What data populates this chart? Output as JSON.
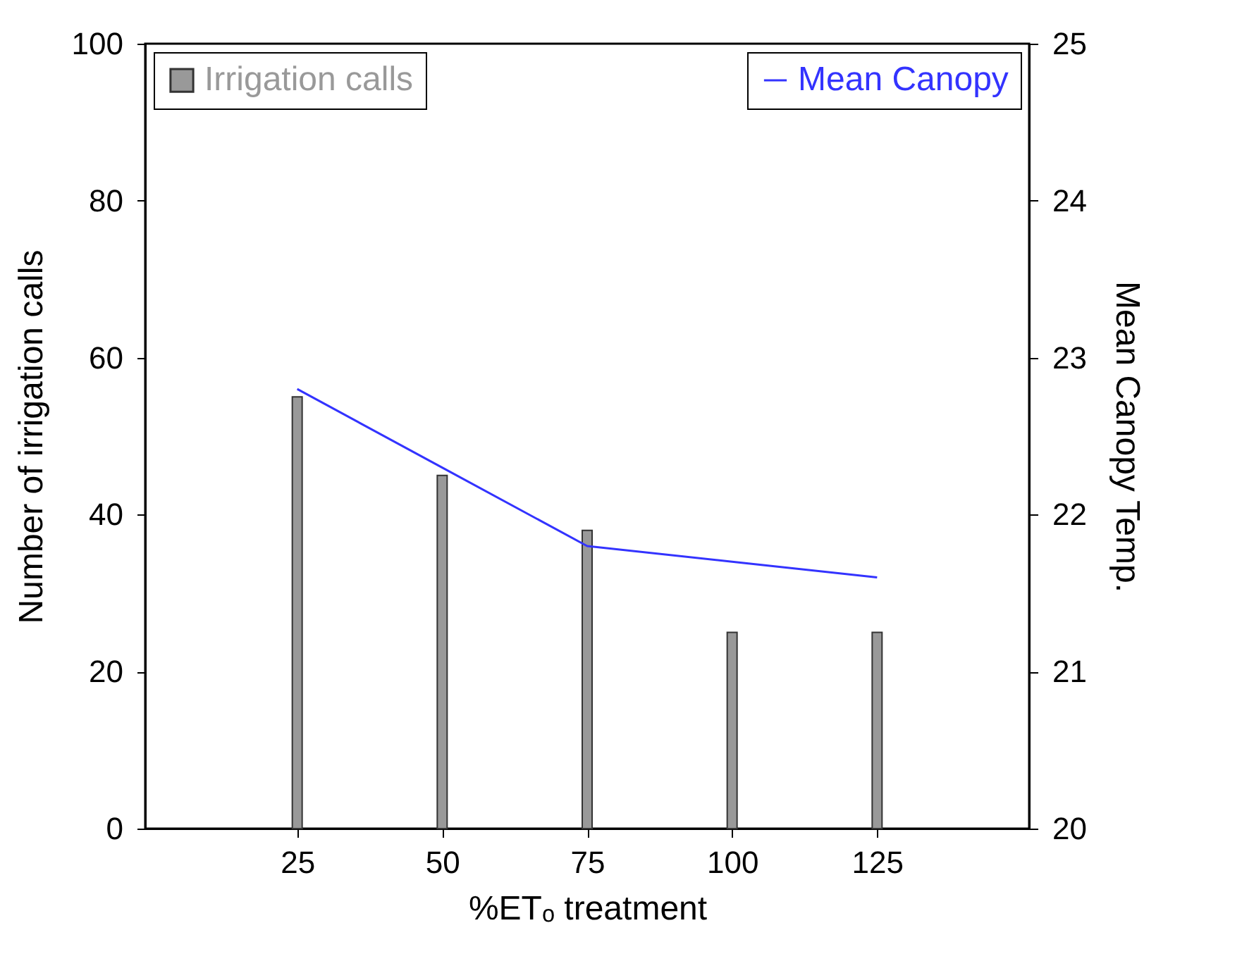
{
  "chart_data": {
    "type": "bar",
    "xlabel": "%ETₒ treatment",
    "ylabel": "Number of  irrigation calls",
    "y2label": "Mean Canopy Temp.",
    "x": [
      25,
      50,
      75,
      100,
      125
    ],
    "series": [
      {
        "name": "Irrigation calls",
        "color": "#999999",
        "values": [
          55,
          45,
          38,
          25,
          25
        ]
      },
      {
        "name": "Mean Canopy",
        "type": "line",
        "axis": "y2",
        "color": "#3333ff",
        "values": [
          22.8,
          22.3,
          21.8,
          21.7,
          21.6
        ]
      }
    ],
    "xlim": [
      0,
      150
    ],
    "xticks": [
      25,
      50,
      75,
      100,
      125
    ],
    "ylim": [
      0,
      100
    ],
    "yticks": [
      0,
      20,
      40,
      60,
      80,
      100
    ],
    "y2lim": [
      20,
      25
    ],
    "y2ticks": [
      20,
      21,
      22,
      23,
      24,
      25
    ],
    "grid": false,
    "legend": "top",
    "marker": "none",
    "line_style": "solid"
  }
}
